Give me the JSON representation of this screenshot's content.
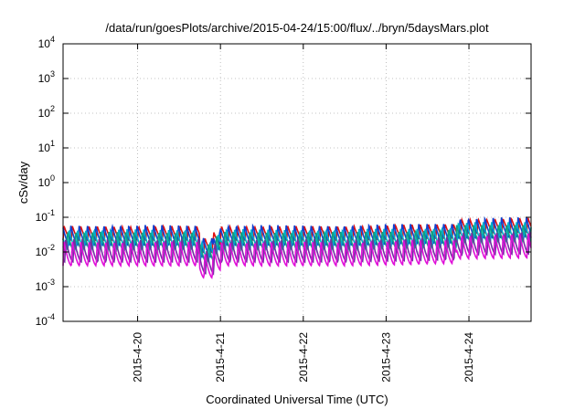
{
  "chart_data": {
    "type": "line",
    "title": "/data/run/goesPlots/archive/2015-04-24/15:00/flux/../bryn/5daysMars.plot",
    "xlabel": "Coordinated Universal Time (UTC)",
    "ylabel": "cSv/day",
    "yscale": "log",
    "ylim": [
      0.0001,
      10000
    ],
    "xlim_days": [
      -0.9,
      4.75
    ],
    "y_ticks": [
      {
        "base": "10",
        "exp": "4",
        "value": 10000
      },
      {
        "base": "10",
        "exp": "3",
        "value": 1000
      },
      {
        "base": "10",
        "exp": "2",
        "value": 100
      },
      {
        "base": "10",
        "exp": "1",
        "value": 10
      },
      {
        "base": "10",
        "exp": "0",
        "value": 1
      },
      {
        "base": "10",
        "exp": "-1",
        "value": 0.1
      },
      {
        "base": "10",
        "exp": "-2",
        "value": 0.01
      },
      {
        "base": "10",
        "exp": "-3",
        "value": 0.001
      },
      {
        "base": "10",
        "exp": "-4",
        "value": 0.0001
      }
    ],
    "x_ticks": [
      {
        "label": "2015-4-20",
        "day": 0
      },
      {
        "label": "2015-4-21",
        "day": 1
      },
      {
        "label": "2015-4-22",
        "day": 2
      },
      {
        "label": "2015-4-23",
        "day": 3
      },
      {
        "label": "2015-4-24",
        "day": 4
      }
    ],
    "grid": true,
    "legend": "none",
    "cycles_per_day": 10,
    "series": [
      {
        "name": "series-red",
        "color": "#e01010",
        "peak": 0.056,
        "trough": 0.022
      },
      {
        "name": "series-blue",
        "color": "#1040d0",
        "peak": 0.06,
        "trough": 0.016
      },
      {
        "name": "series-cyan",
        "color": "#00b0c8",
        "peak": 0.045,
        "trough": 0.012
      },
      {
        "name": "series-teal",
        "color": "#10a080",
        "peak": 0.038,
        "trough": 0.01
      },
      {
        "name": "series-purple",
        "color": "#7030a0",
        "peak": 0.024,
        "trough": 0.0052
      },
      {
        "name": "series-magenta",
        "color": "#e010d8",
        "peak": 0.02,
        "trough": 0.004
      }
    ]
  }
}
